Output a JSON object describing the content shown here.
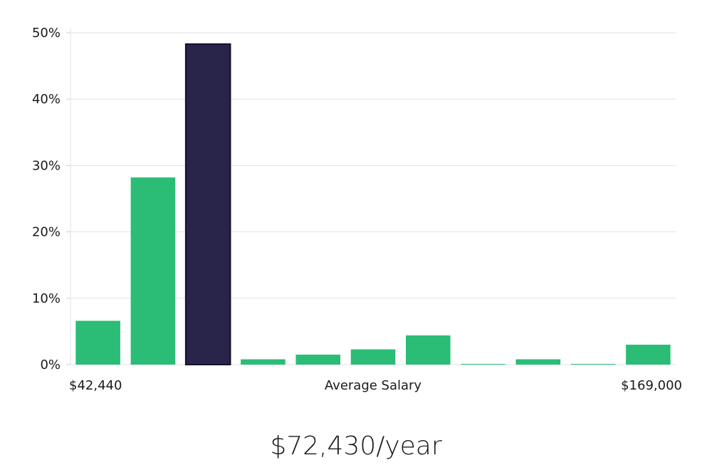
{
  "chart_data": {
    "type": "bar",
    "title": "",
    "xlabel": "Average Salary",
    "ylabel": "",
    "x_min_label": "$42,440",
    "x_max_label": "$169,000",
    "ylim": [
      0,
      50
    ],
    "yticks": [
      0,
      10,
      20,
      30,
      40,
      50
    ],
    "ytick_labels": [
      "0%",
      "10%",
      "20%",
      "30%",
      "40%",
      "50%"
    ],
    "grid": true,
    "highlight_index": 2,
    "colors": {
      "bar": "#2bbd75",
      "highlight": "#29244a",
      "highlight_stroke": "#15112e",
      "grid": "#e2e2e2",
      "axis": "#cfcfcf"
    },
    "values": [
      6.6,
      28.2,
      48.3,
      0.8,
      1.5,
      2.3,
      4.4,
      0.1,
      0.8,
      0.1,
      3.0
    ]
  },
  "summary": {
    "average_salary": "$72,430/year"
  }
}
